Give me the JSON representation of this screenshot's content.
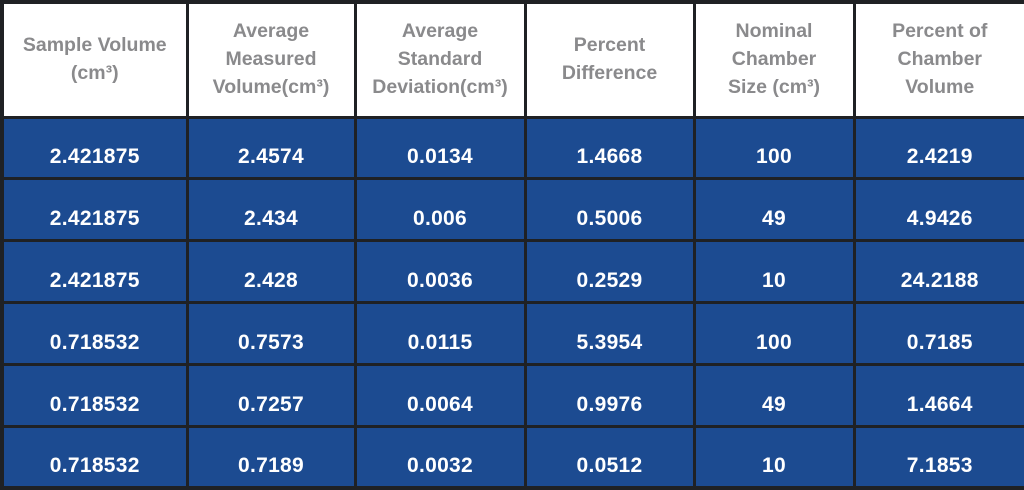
{
  "colors": {
    "row_bg": "#1c4b91",
    "header_bg": "#ffffff",
    "header_text": "#8a8a8c",
    "cell_text": "#ffffff",
    "border": "#1f2124"
  },
  "chart_data": {
    "type": "table",
    "title": "",
    "columns": [
      {
        "label": "Sample Volume (cm³)",
        "lines": [
          "Sample Volume",
          "(cm³)"
        ]
      },
      {
        "label": "Average Measured Volume(cm³)",
        "lines": [
          "Average",
          "Measured",
          "Volume(cm³)"
        ]
      },
      {
        "label": "Average Standard Deviation(cm³)",
        "lines": [
          "Average",
          "Standard",
          "Deviation(cm³)"
        ]
      },
      {
        "label": "Percent Difference",
        "lines": [
          "Percent",
          "Difference"
        ]
      },
      {
        "label": "Nominal Chamber Size (cm³)",
        "lines": [
          "Nominal",
          "Chamber",
          "Size (cm³)"
        ]
      },
      {
        "label": "Percent of Chamber Volume",
        "lines": [
          "Percent of",
          "Chamber",
          "Volume"
        ]
      }
    ],
    "rows": [
      [
        "2.421875",
        "2.4574",
        "0.0134",
        "1.4668",
        "100",
        "2.4219"
      ],
      [
        "2.421875",
        "2.434",
        "0.006",
        "0.5006",
        "49",
        "4.9426"
      ],
      [
        "2.421875",
        "2.428",
        "0.0036",
        "0.2529",
        "10",
        "24.2188"
      ],
      [
        "0.718532",
        "0.7573",
        "0.0115",
        "5.3954",
        "100",
        "0.7185"
      ],
      [
        "0.718532",
        "0.7257",
        "0.0064",
        "0.9976",
        "49",
        "1.4664"
      ],
      [
        "0.718532",
        "0.7189",
        "0.0032",
        "0.0512",
        "10",
        "7.1853"
      ]
    ]
  }
}
